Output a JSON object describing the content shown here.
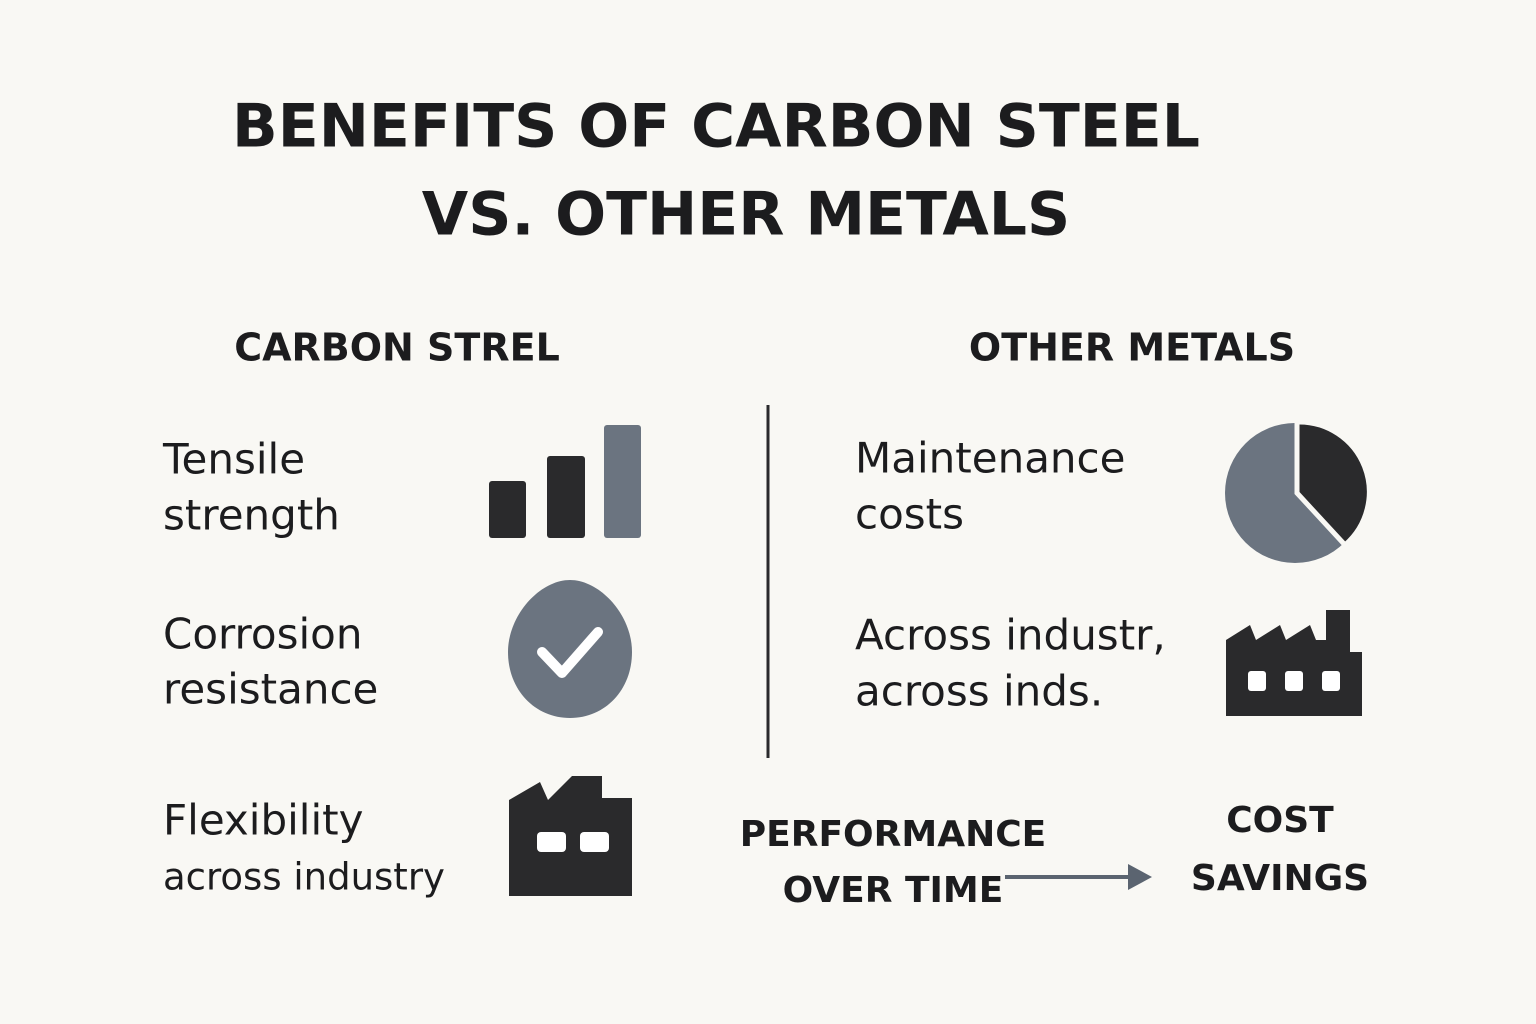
{
  "header": {
    "title_lines": [
      "BENEFITS OF CARBON STEEL",
      "VS. OTHER METALS"
    ]
  },
  "left": {
    "heading": "CARBON STREL",
    "items": [
      {
        "lines": [
          "Tensile",
          "strength"
        ]
      },
      {
        "lines": [
          "Corrosion",
          "resistance"
        ]
      },
      {
        "lines": [
          "Flexibility",
          "across industry"
        ]
      }
    ]
  },
  "right": {
    "heading": "OTHER METALS",
    "items": [
      {
        "lines": [
          "Maintenance",
          "costs"
        ]
      },
      {
        "lines": [
          "Across industr,",
          "across inds."
        ]
      }
    ]
  },
  "flow": {
    "from_lines": [
      "PERFORMANCE",
      "OVER TIME"
    ],
    "to_lines": [
      "COST",
      "SAVINGS"
    ]
  }
}
